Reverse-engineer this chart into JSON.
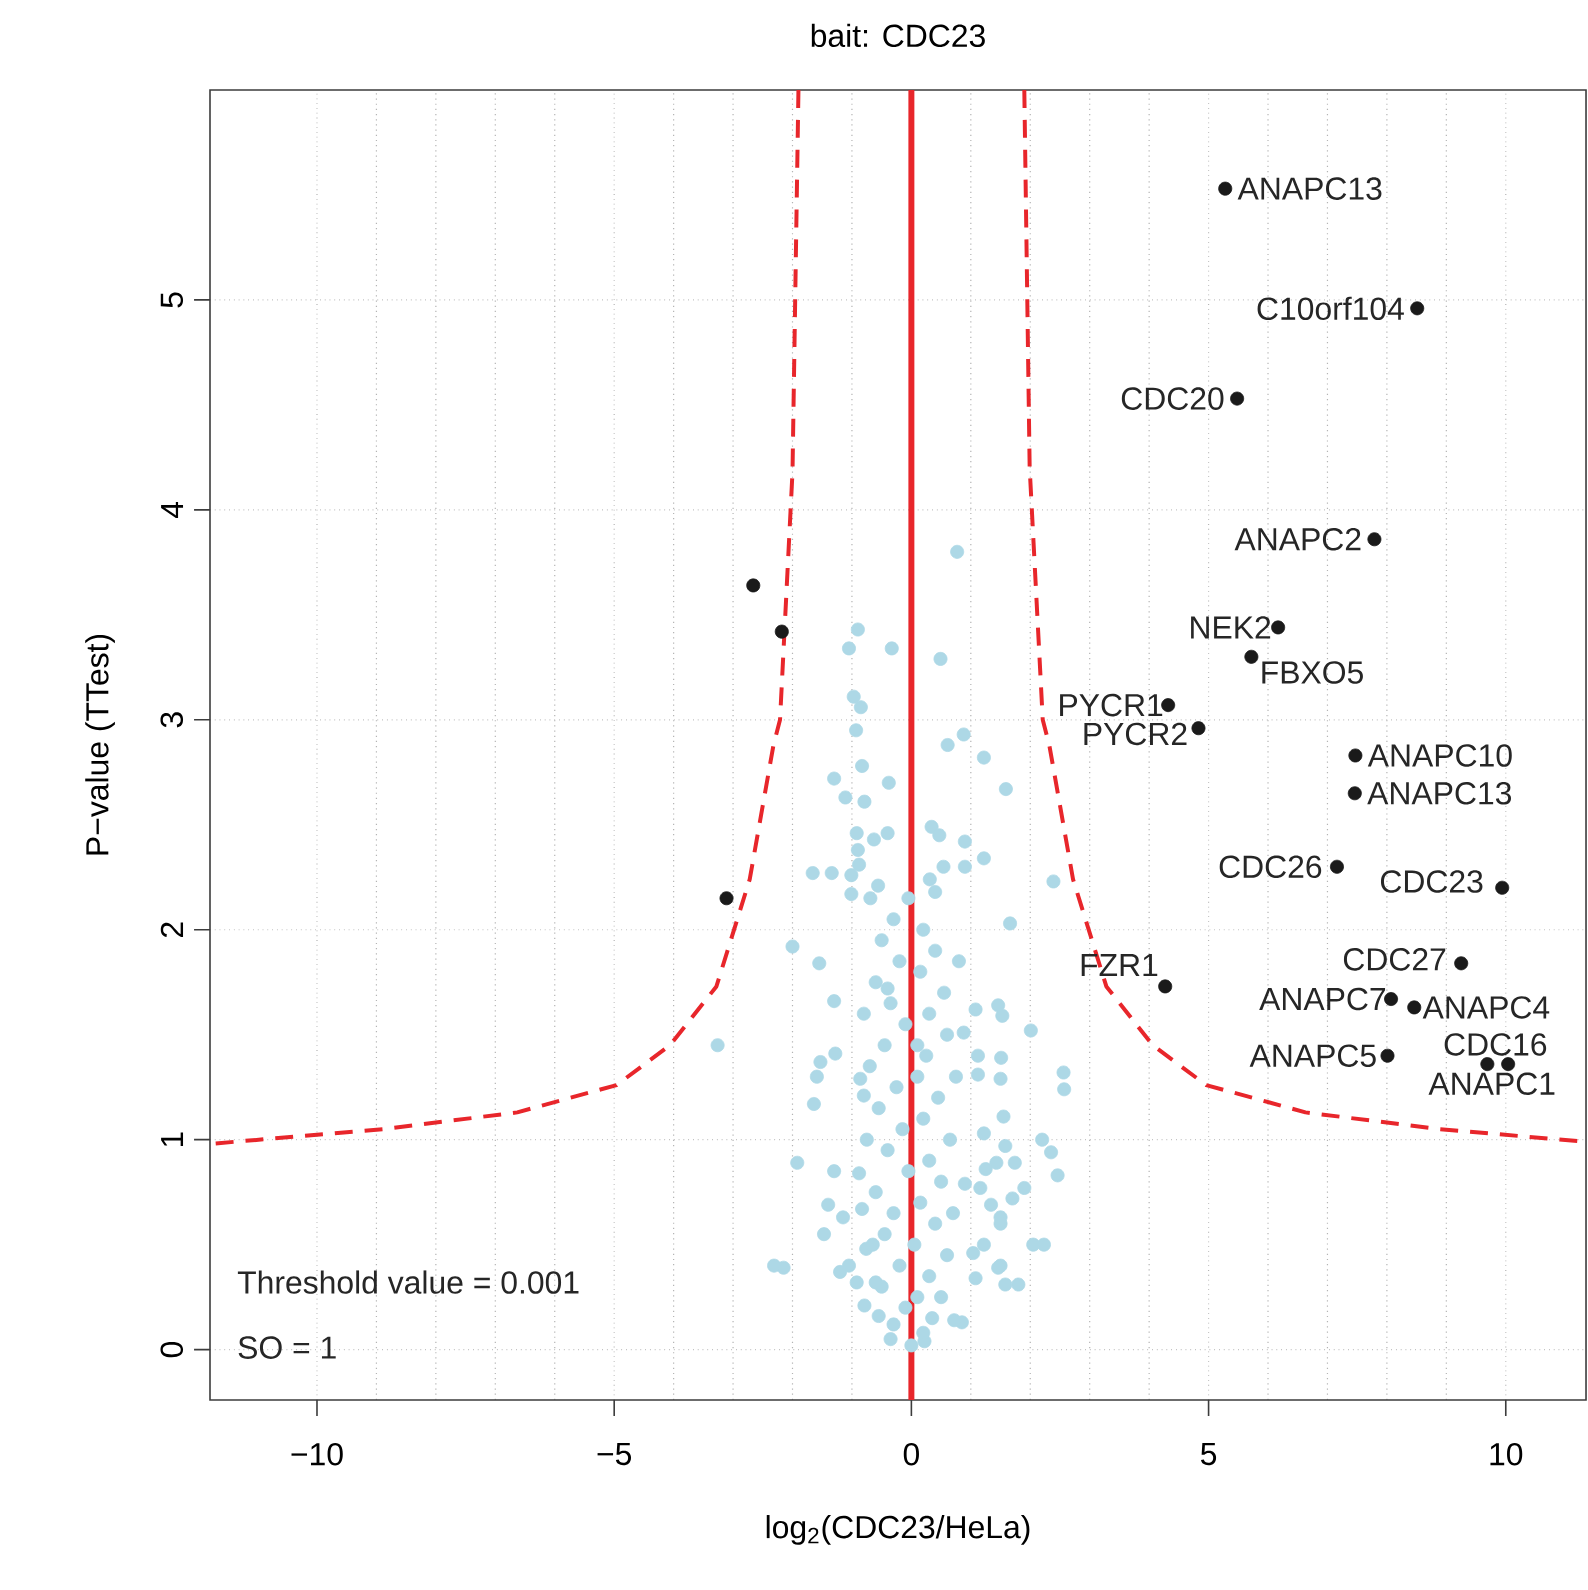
{
  "chart_data": {
    "type": "scatter",
    "title": "bait: CDC23",
    "xlabel": "log$_{2}$(CDC23/HeLa)",
    "ylabel": "P−value (TTest)",
    "xlim": [
      -11.8,
      11.35
    ],
    "ylim": [
      -0.24,
      6.0
    ],
    "xticks": [
      {
        "value": -10,
        "label": "−10"
      },
      {
        "value": -5,
        "label": "−5"
      },
      {
        "value": 0,
        "label": "0"
      },
      {
        "value": 5,
        "label": "5"
      },
      {
        "value": 10,
        "label": "10"
      }
    ],
    "yticks": [
      0,
      1,
      2,
      3,
      4,
      5
    ],
    "grid": true,
    "marker": "circle",
    "ref_lines": [
      {
        "axis": "x",
        "value": 0,
        "color": "#e8262b"
      }
    ],
    "series": [
      {
        "color": "#add8e6",
        "x": [
          0.77,
          -0.9,
          -1.05,
          -0.33,
          0.49,
          -0.97,
          -0.85,
          -0.93,
          0.61,
          0.88,
          1.22,
          -0.83,
          -1.3,
          -0.38,
          -1.11,
          -0.79,
          1.59,
          -0.92,
          -0.4,
          -0.63,
          0.34,
          0.47,
          0.9,
          -0.9,
          -0.88,
          -1.66,
          -1.34,
          -1.01,
          -0.56,
          0.31,
          0.54,
          0.9,
          1.22,
          2.39,
          -1.01,
          -0.69,
          0.4,
          1.66,
          -2.0,
          -1.55,
          -3.26,
          -1.3,
          -0.4,
          1.46,
          1.53,
          2.01,
          1.08,
          0.88,
          -1.53,
          -1.59,
          -1.64,
          -1.28,
          1.51,
          1.5,
          2.56,
          2.57,
          1.12,
          1.12,
          -0.86,
          -0.8,
          1.55,
          1.22,
          2.2,
          2.35,
          2.46,
          1.58,
          1.74,
          1.43,
          1.25,
          -1.92,
          -1.3,
          -0.88,
          0.9,
          1.16,
          1.9,
          1.7,
          1.34,
          -1.4,
          -0.83,
          1.5,
          1.5,
          -1.47,
          2.23,
          1.22,
          -0.76,
          1.04,
          -2.15,
          -1.05,
          1.5,
          -0.92,
          1.8,
          -0.6,
          1.08,
          -0.79,
          -0.55,
          0.85,
          -0.35,
          0.22,
          0.0,
          -2.31,
          2.05,
          1.58,
          0.72,
          1.46,
          -1.15,
          -1.2,
          -0.3,
          0.2,
          -0.5,
          0.4,
          -0.2,
          0.15,
          -0.6,
          0.55,
          -0.35,
          0.3,
          -0.1,
          0.6,
          -0.45,
          0.25,
          -0.7,
          0.1,
          -0.25,
          0.45,
          -0.55,
          0.2,
          -0.15,
          0.65,
          -0.4,
          0.3,
          -0.05,
          0.5,
          -0.6,
          0.15,
          -0.3,
          0.4,
          -0.45,
          0.05,
          0.6,
          -0.2,
          0.3,
          -0.5,
          0.1,
          -0.1,
          0.35,
          -0.3,
          0.2,
          0.5,
          -0.65,
          0.7,
          -0.75,
          0.75,
          -0.8,
          0.8,
          -0.05,
          0.1
        ],
        "values": [
          3.8,
          3.43,
          3.34,
          3.34,
          3.29,
          3.11,
          3.06,
          2.95,
          2.88,
          2.93,
          2.82,
          2.78,
          2.72,
          2.7,
          2.63,
          2.61,
          2.67,
          2.46,
          2.46,
          2.43,
          2.49,
          2.45,
          2.42,
          2.38,
          2.31,
          2.27,
          2.27,
          2.26,
          2.21,
          2.24,
          2.3,
          2.3,
          2.34,
          2.23,
          2.17,
          2.15,
          2.18,
          2.03,
          1.92,
          1.84,
          1.45,
          1.66,
          1.72,
          1.64,
          1.59,
          1.52,
          1.62,
          1.51,
          1.37,
          1.3,
          1.17,
          1.41,
          1.39,
          1.29,
          1.32,
          1.24,
          1.4,
          1.31,
          1.29,
          1.21,
          1.11,
          1.03,
          1.0,
          0.94,
          0.83,
          0.97,
          0.89,
          0.89,
          0.86,
          0.89,
          0.85,
          0.84,
          0.79,
          0.77,
          0.77,
          0.72,
          0.69,
          0.69,
          0.67,
          0.63,
          0.6,
          0.55,
          0.5,
          0.5,
          0.48,
          0.46,
          0.39,
          0.4,
          0.4,
          0.32,
          0.31,
          0.32,
          0.34,
          0.21,
          0.16,
          0.13,
          0.05,
          0.04,
          0.02,
          0.4,
          0.5,
          0.31,
          0.14,
          0.39,
          0.63,
          0.37,
          2.05,
          2.0,
          1.95,
          1.9,
          1.85,
          1.8,
          1.75,
          1.7,
          1.65,
          1.6,
          1.55,
          1.5,
          1.45,
          1.4,
          1.35,
          1.3,
          1.25,
          1.2,
          1.15,
          1.1,
          1.05,
          1.0,
          0.95,
          0.9,
          0.85,
          0.8,
          0.75,
          0.7,
          0.65,
          0.6,
          0.55,
          0.5,
          0.45,
          0.4,
          0.35,
          0.3,
          0.25,
          0.2,
          0.15,
          0.12,
          0.08,
          0.25,
          0.5,
          0.65,
          1.0,
          1.3,
          1.6,
          1.85,
          2.15,
          1.45
        ]
      },
      {
        "color": "#1a1a1a",
        "x": [
          5.28,
          8.51,
          5.48,
          7.79,
          6.17,
          5.72,
          4.32,
          4.83,
          7.47,
          7.46,
          7.16,
          9.94,
          4.27,
          9.25,
          8.07,
          8.46,
          8.01,
          9.69,
          10.04,
          -2.66,
          -2.18,
          -3.11
        ],
        "values": [
          5.53,
          4.96,
          4.53,
          3.86,
          3.44,
          3.3,
          3.07,
          2.96,
          2.83,
          2.65,
          2.3,
          2.2,
          1.73,
          1.84,
          1.67,
          1.63,
          1.4,
          1.36,
          1.36,
          3.64,
          3.42,
          2.15
        ]
      },
      {
        "type": "line",
        "color": "#e8262b",
        "line_style": "dashed",
        "marker": "none",
        "x": [
          1.9,
          1.99,
          2.21,
          2.32,
          2.72,
          3.28,
          4.06,
          4.96,
          6.63,
          8.89,
          11.35
        ],
        "values": [
          6.0,
          4.2,
          3.0,
          2.88,
          2.24,
          1.73,
          1.45,
          1.26,
          1.13,
          1.05,
          0.99
        ]
      },
      {
        "type": "line",
        "color": "#e8262b",
        "line_style": "dashed",
        "marker": "none",
        "x": [
          -1.9,
          -2.0,
          -2.21,
          -2.32,
          -2.72,
          -3.28,
          -4.06,
          -4.96,
          -6.63,
          -8.89,
          -11.8
        ],
        "values": [
          6.0,
          4.18,
          3.0,
          2.88,
          2.24,
          1.73,
          1.45,
          1.26,
          1.13,
          1.05,
          0.98
        ]
      }
    ],
    "annotations": [
      {
        "text": "ANAPC13",
        "x": 5.28,
        "y": 5.53
      },
      {
        "text": "C10orf104",
        "x": 8.51,
        "y": 4.96
      },
      {
        "text": "CDC20",
        "x": 5.48,
        "y": 4.53
      },
      {
        "text": "ANAPC2",
        "x": 7.79,
        "y": 3.86
      },
      {
        "text": "NEK2",
        "x": 6.17,
        "y": 3.44
      },
      {
        "text": "FBXO5",
        "x": 5.72,
        "y": 3.3
      },
      {
        "text": "PYCR1",
        "x": 4.32,
        "y": 3.07
      },
      {
        "text": "PYCR2",
        "x": 4.83,
        "y": 2.96
      },
      {
        "text": "ANAPC10",
        "x": 7.47,
        "y": 2.83
      },
      {
        "text": "ANAPC13",
        "x": 7.46,
        "y": 2.65
      },
      {
        "text": "CDC26",
        "x": 7.16,
        "y": 2.3
      },
      {
        "text": "CDC23",
        "x": 9.94,
        "y": 2.2
      },
      {
        "text": "FZR1",
        "x": 4.27,
        "y": 1.73
      },
      {
        "text": "CDC27",
        "x": 9.25,
        "y": 1.84
      },
      {
        "text": "ANAPC7",
        "x": 8.07,
        "y": 1.67
      },
      {
        "text": "ANAPC4",
        "x": 8.46,
        "y": 1.63
      },
      {
        "text": "ANAPC5",
        "x": 8.01,
        "y": 1.4
      },
      {
        "text": "CDC16",
        "x": 9.69,
        "y": 1.36
      },
      {
        "text": "ANAPC1",
        "x": 10.04,
        "y": 1.36
      },
      "Threshold value =  0.001",
      "SO =  1"
    ]
  }
}
